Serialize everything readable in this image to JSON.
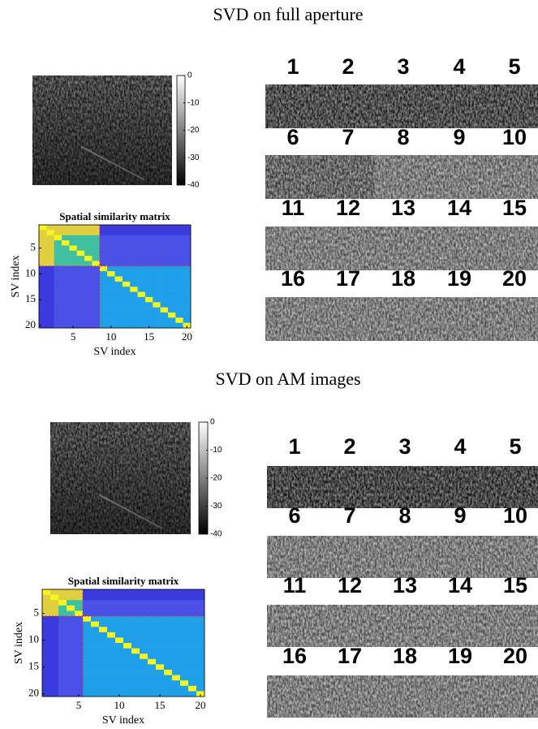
{
  "panels": [
    {
      "title": "SVD on full aperture",
      "colorbar": {
        "ticks": [
          0,
          -10,
          -20,
          -30,
          -40
        ]
      },
      "matrix": {
        "title": "Spatial similarity matrix",
        "xlabel": "SV index",
        "ylabel": "SV index",
        "xticks": [
          5,
          10,
          15,
          20
        ],
        "yticks": [
          5,
          10,
          15,
          20
        ]
      },
      "components": [
        1,
        2,
        3,
        4,
        5,
        6,
        7,
        8,
        9,
        10,
        11,
        12,
        13,
        14,
        15,
        16,
        17,
        18,
        19,
        20
      ]
    },
    {
      "title": "SVD on AM images",
      "colorbar": {
        "ticks": [
          0,
          -10,
          -20,
          -30,
          -40
        ]
      },
      "matrix": {
        "title": "Spatial similarity matrix",
        "xlabel": "SV index",
        "ylabel": "SV index",
        "xticks": [
          5,
          10,
          15,
          20
        ],
        "yticks": [
          5,
          10,
          15,
          20
        ]
      },
      "components": [
        1,
        2,
        3,
        4,
        5,
        6,
        7,
        8,
        9,
        10,
        11,
        12,
        13,
        14,
        15,
        16,
        17,
        18,
        19,
        20
      ]
    }
  ]
}
